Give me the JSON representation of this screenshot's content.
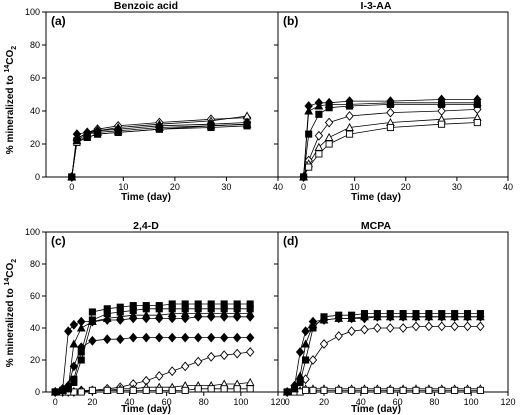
{
  "figure": {
    "y_label_main": "% mineralized to ",
    "y_label_sup": "14",
    "y_label_tail": "CO",
    "y_label_sub": "2"
  },
  "marker_legend": [
    "filled-diamond",
    "filled-triangle",
    "filled-square",
    "open-diamond",
    "open-triangle",
    "open-square"
  ],
  "chart_data": [
    {
      "type": "line",
      "id": "a",
      "letter": "(a)",
      "title": "Benzoic acid",
      "xlabel": "Time (day)",
      "ylabel": "% mineralized to 14CO2",
      "xlim": [
        -5,
        40
      ],
      "ylim": [
        0,
        100
      ],
      "xticks": [
        0,
        10,
        20,
        30,
        40
      ],
      "yticks": [
        0,
        20,
        40,
        60,
        80,
        100
      ],
      "x": [
        0,
        1,
        3,
        5,
        9,
        17,
        27,
        34
      ],
      "series": [
        {
          "marker": "filled-diamond",
          "values": [
            0,
            26,
            27,
            28,
            29,
            31,
            32,
            33
          ]
        },
        {
          "marker": "filled-triangle",
          "values": [
            0,
            24,
            26,
            27,
            28,
            30,
            31,
            32
          ]
        },
        {
          "marker": "filled-square",
          "values": [
            0,
            22,
            24,
            26,
            27,
            29,
            30,
            31
          ]
        },
        {
          "marker": "open-diamond",
          "values": [
            0,
            23,
            27,
            29,
            31,
            33,
            35,
            36
          ]
        },
        {
          "marker": "open-triangle",
          "values": [
            0,
            22,
            26,
            28,
            30,
            32,
            34,
            37
          ]
        },
        {
          "marker": "open-square",
          "values": [
            0,
            21,
            24,
            26,
            27,
            29,
            31,
            32
          ]
        }
      ]
    },
    {
      "type": "line",
      "id": "b",
      "letter": "(b)",
      "title": "I-3-AA",
      "xlabel": "Time (day)",
      "ylabel": "% mineralized to 14CO2",
      "xlim": [
        -5,
        40
      ],
      "ylim": [
        0,
        100
      ],
      "xticks": [
        0,
        10,
        20,
        30,
        40
      ],
      "yticks": [
        0,
        20,
        40,
        60,
        80,
        100
      ],
      "x": [
        0,
        1,
        3,
        5,
        9,
        17,
        27,
        34
      ],
      "series": [
        {
          "marker": "filled-diamond",
          "values": [
            0,
            43,
            45,
            45,
            46,
            46,
            47,
            47
          ]
        },
        {
          "marker": "filled-triangle",
          "values": [
            0,
            40,
            43,
            44,
            44,
            45,
            45,
            45
          ]
        },
        {
          "marker": "filled-square",
          "values": [
            0,
            26,
            38,
            42,
            43,
            44,
            44,
            44
          ]
        },
        {
          "marker": "open-diamond",
          "values": [
            0,
            10,
            25,
            33,
            37,
            39,
            40,
            41
          ]
        },
        {
          "marker": "open-triangle",
          "values": [
            0,
            8,
            18,
            24,
            30,
            33,
            35,
            36
          ]
        },
        {
          "marker": "open-square",
          "values": [
            0,
            6,
            14,
            20,
            26,
            30,
            32,
            33
          ]
        }
      ]
    },
    {
      "type": "line",
      "id": "c",
      "letter": "(c)",
      "title": "2,4-D",
      "xlabel": "Time (day)",
      "ylabel": "% mineralized to 14CO2",
      "xlim": [
        -5,
        120
      ],
      "ylim": [
        0,
        100
      ],
      "xticks": [
        0,
        20,
        40,
        60,
        80,
        100,
        120
      ],
      "yticks": [
        0,
        20,
        40,
        60,
        80,
        100
      ],
      "x": [
        0,
        4,
        7,
        10,
        14,
        20,
        28,
        35,
        42,
        49,
        56,
        63,
        70,
        77,
        84,
        91,
        98,
        105
      ],
      "series": [
        {
          "marker": "filled-diamond",
          "values": [
            0,
            2,
            38,
            42,
            44,
            44,
            45,
            45,
            46,
            46,
            46,
            46,
            46,
            47,
            47,
            47,
            47,
            47
          ]
        },
        {
          "marker": "filled-diamond",
          "values": [
            0,
            1,
            4,
            16,
            28,
            32,
            33,
            33,
            34,
            34,
            34,
            34,
            34,
            34,
            34,
            34,
            34,
            34
          ]
        },
        {
          "marker": "filled-triangle",
          "values": [
            0,
            1,
            3,
            30,
            40,
            44,
            46,
            47,
            48,
            48,
            48,
            49,
            49,
            49,
            49,
            49,
            49,
            49
          ]
        },
        {
          "marker": "filled-square",
          "values": [
            0,
            1,
            2,
            8,
            25,
            50,
            52,
            53,
            54,
            54,
            54,
            55,
            55,
            55,
            55,
            55,
            55,
            55
          ]
        },
        {
          "marker": "filled-square",
          "values": [
            0,
            1,
            2,
            6,
            20,
            45,
            49,
            50,
            51,
            52,
            52,
            52,
            52,
            52,
            52,
            52,
            52,
            52
          ]
        },
        {
          "marker": "open-diamond",
          "values": [
            0,
            0,
            0,
            0,
            1,
            1,
            2,
            3,
            5,
            7,
            10,
            13,
            16,
            19,
            22,
            23,
            24,
            25
          ]
        },
        {
          "marker": "open-triangle",
          "values": [
            0,
            0,
            0,
            0,
            1,
            1,
            1,
            2,
            2,
            3,
            3,
            3,
            4,
            4,
            4,
            5,
            5,
            6
          ]
        },
        {
          "marker": "open-square",
          "values": [
            0,
            0,
            0,
            0,
            0,
            1,
            1,
            1,
            1,
            1,
            1,
            1,
            1,
            2,
            2,
            2,
            2,
            2
          ]
        }
      ]
    },
    {
      "type": "line",
      "id": "d",
      "letter": "(d)",
      "title": "MCPA",
      "xlabel": "Time (day)",
      "ylabel": "% mineralized to 14CO2",
      "xlim": [
        -5,
        120
      ],
      "ylim": [
        0,
        100
      ],
      "xticks": [
        0,
        20,
        40,
        60,
        80,
        100,
        120
      ],
      "yticks": [
        0,
        20,
        40,
        60,
        80,
        100
      ],
      "x": [
        0,
        4,
        7,
        10,
        14,
        20,
        28,
        35,
        42,
        49,
        56,
        63,
        70,
        77,
        84,
        91,
        98,
        105
      ],
      "series": [
        {
          "marker": "filled-diamond",
          "values": [
            0,
            4,
            25,
            38,
            44,
            45,
            46,
            46,
            46,
            47,
            47,
            47,
            47,
            47,
            47,
            47,
            47,
            47
          ]
        },
        {
          "marker": "filled-triangle",
          "values": [
            0,
            2,
            10,
            30,
            42,
            45,
            46,
            46,
            47,
            47,
            47,
            47,
            47,
            47,
            47,
            47,
            47,
            47
          ]
        },
        {
          "marker": "filled-square",
          "values": [
            0,
            2,
            6,
            20,
            40,
            47,
            48,
            48,
            49,
            49,
            49,
            49,
            49,
            49,
            49,
            49,
            49,
            49
          ]
        },
        {
          "marker": "open-diamond",
          "values": [
            0,
            1,
            3,
            8,
            20,
            30,
            35,
            38,
            39,
            40,
            40,
            40,
            41,
            41,
            41,
            41,
            41,
            41
          ]
        },
        {
          "marker": "open-triangle",
          "values": [
            0,
            1,
            1,
            2,
            2,
            2,
            2,
            2,
            2,
            2,
            2,
            2,
            2,
            2,
            2,
            2,
            2,
            2
          ]
        },
        {
          "marker": "open-square",
          "values": [
            0,
            0,
            0,
            1,
            1,
            1,
            1,
            1,
            1,
            1,
            1,
            1,
            1,
            1,
            1,
            1,
            1,
            1
          ]
        }
      ]
    }
  ]
}
